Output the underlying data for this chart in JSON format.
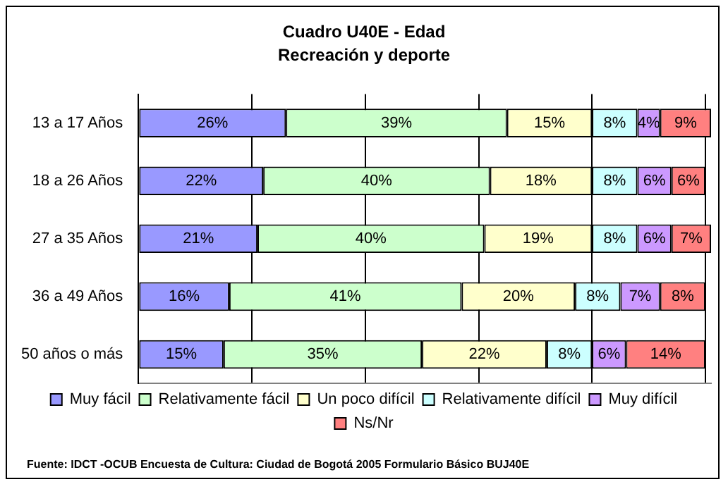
{
  "chart_data": {
    "type": "bar",
    "orientation": "horizontal",
    "stacked": true,
    "title": "Cuadro U40E - Edad",
    "subtitle": "Recreación y deporte",
    "categories": [
      "13 a 17 Años",
      "18 a 26 Años",
      "27 a 35 Años",
      "36 a 49 Años",
      "50 años o más"
    ],
    "series": [
      {
        "name": "Muy fácil",
        "color": "#9999ff",
        "values": [
          26,
          22,
          21,
          16,
          15
        ],
        "value_labels": [
          "26%",
          "22%",
          "21%",
          "16%",
          "15%"
        ]
      },
      {
        "name": "Relativamente fácil",
        "color": "#ccffcc",
        "values": [
          39,
          40,
          40,
          41,
          35
        ],
        "value_labels": [
          "39%",
          "40%",
          "40%",
          "41%",
          "35%"
        ]
      },
      {
        "name": "Un poco difícil",
        "color": "#ffffcc",
        "values": [
          15,
          18,
          19,
          20,
          22
        ],
        "value_labels": [
          "15%",
          "18%",
          "19%",
          "20%",
          "22%"
        ]
      },
      {
        "name": "Relativamente difícil",
        "color": "#ccffff",
        "values": [
          8,
          8,
          8,
          8,
          8
        ],
        "value_labels": [
          "8%",
          "8%",
          "8%",
          "8%",
          "8%"
        ]
      },
      {
        "name": "Muy difícil",
        "color": "#cc99ff",
        "values": [
          4,
          6,
          6,
          7,
          6
        ],
        "value_labels": [
          "4%",
          "6%",
          "6%",
          "7%",
          "6%"
        ]
      },
      {
        "name": "Ns/Nr",
        "color": "#ff8080",
        "values": [
          9,
          6,
          7,
          8,
          14
        ],
        "value_labels": [
          "9%",
          "6%",
          "7%",
          "8%",
          "14%"
        ]
      }
    ],
    "xlim": [
      0,
      101
    ],
    "xticks": [
      {
        "value": 0,
        "label": null
      },
      {
        "value": 20,
        "label": null
      },
      {
        "value": 40,
        "label": null
      },
      {
        "value": 60,
        "label": null
      },
      {
        "value": 80,
        "label": null
      },
      {
        "value": 100,
        "label": null
      }
    ],
    "grid": "x",
    "legend": "bottom",
    "tick_labels": "y",
    "annotations": [
      "Fuente: IDCT -OCUB Encuesta de Cultura: Ciudad de Bogotá 2005 Formulario Básico BUJ40E"
    ]
  }
}
